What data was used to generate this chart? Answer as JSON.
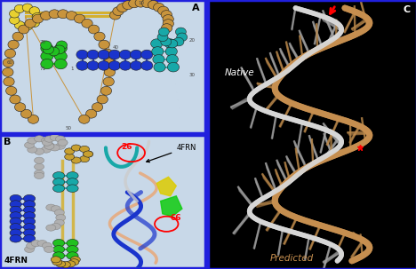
{
  "fig_width": 4.74,
  "fig_height": 3.08,
  "dpi": 100,
  "background_color": "#1a1aee",
  "panel_A": {
    "bg": "#c8d8e8",
    "brown": "#c8943c",
    "yellow": "#e8d030",
    "green": "#20c020",
    "blue": "#1a34cc",
    "teal": "#18a8a8",
    "gold_line": "#d4b030"
  },
  "panel_B": {
    "bg": "#c8d8e8",
    "gray": "#b0b0b0",
    "blue": "#1a34cc",
    "green": "#20c020",
    "teal": "#18a8a8",
    "gold": "#c8a030",
    "gold_line": "#d4b030",
    "orange": "#e8a878"
  },
  "panel_C": {
    "bg": "#000000",
    "native_color": "#d8d8d8",
    "predicted_color": "#c89050",
    "base_color": "#8a7060",
    "native_label": "Native",
    "predicted_label": "Predicted"
  }
}
